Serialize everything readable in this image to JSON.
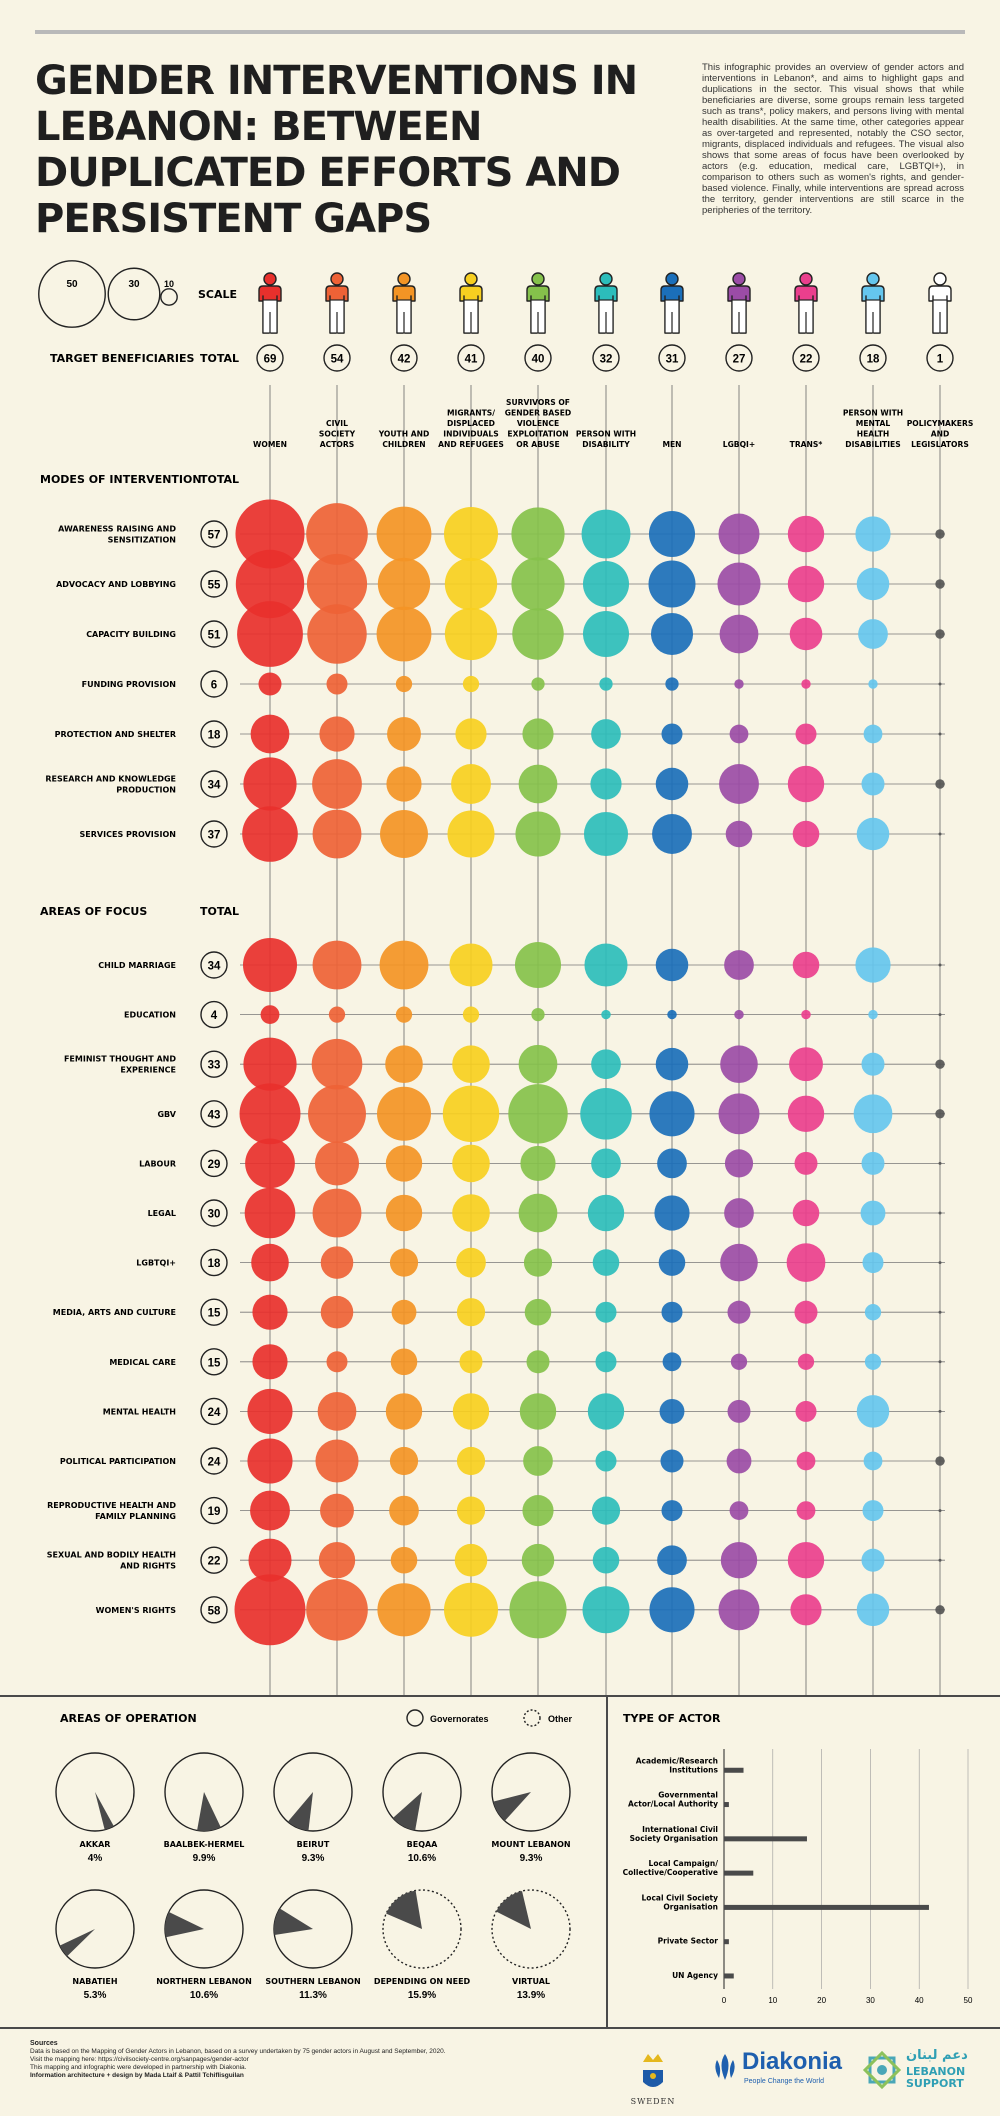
{
  "title": "GENDER INTERVENTIONS IN LEBANON: BETWEEN DUPLICATED EFFORTS AND PERSISTENT GAPS",
  "intro": "This infographic provides an overview of gender actors and interventions in Lebanon*, and aims to highlight gaps and duplications in the sector. This visual shows that while beneficiaries are diverse, some groups remain less targeted such as trans*, policy makers, and persons living with mental health disabilities. At the same time, other categories appear as over-targeted and represented, notably the CSO sector, migrants, displaced individuals and refugees. The visual also shows that some areas of focus have been overlooked by actors (e.g. education, medical care, LGBTQI+), in comparison to others such as women's rights, and gender-based violence. Finally, while interventions are spread across the territory, gender interventions are still scarce in the peripheries of the territory.",
  "labels": {
    "scale": "SCALE",
    "target_beneficiaries": "TARGET BENEFICIARIES",
    "total": "TOTAL",
    "modes_of_intervention": "MODES OF INTERVENTION",
    "areas_of_focus": "AREAS OF FOCUS",
    "areas_of_operation": "AREAS OF OPERATION",
    "governorates": "Governorates",
    "other": "Other",
    "type_of_actor": "TYPE OF ACTOR"
  },
  "scale_values": [
    "50",
    "30",
    "10"
  ],
  "colors": [
    "#e8302c",
    "#ee6236",
    "#f39425",
    "#f7cf20",
    "#85c14b",
    "#2cbdbb",
    "#1b6fba",
    "#9b4ca6",
    "#ea3f8d",
    "#65c6ee",
    "#ffffff"
  ],
  "chart_data": [
    {
      "type": "bubble-matrix",
      "columns": [
        {
          "name": "WOMEN",
          "total": 69
        },
        {
          "name": "CIVIL SOCIETY ACTORS",
          "total": 54
        },
        {
          "name": "YOUTH AND CHILDREN",
          "total": 42
        },
        {
          "name": "MIGRANTS/ DISPLACED INDIVIDUALS AND REFUGEES",
          "total": 41
        },
        {
          "name": "SURVIVORS OF GENDER BASED VIOLENCE EXPLOITATION OR ABUSE",
          "total": 40
        },
        {
          "name": "PERSON WITH DISABILITY",
          "total": 32
        },
        {
          "name": "MEN",
          "total": 31
        },
        {
          "name": "LGBQI+",
          "total": 27
        },
        {
          "name": "TRANS*",
          "total": 22
        },
        {
          "name": "PERSON WITH MENTAL HEALTH DISABILITIES",
          "total": 18
        },
        {
          "name": "POLICYMAKERS AND LEGISLATORS",
          "total": 1
        }
      ],
      "modes": [
        {
          "name": "AWARENESS RAISING AND SENSITIZATION",
          "total": 57,
          "values": [
            54,
            43,
            34,
            33,
            32,
            27,
            24,
            19,
            15,
            14,
            1
          ]
        },
        {
          "name": "ADVOCACY AND LOBBYING",
          "total": 55,
          "values": [
            53,
            41,
            31,
            31,
            32,
            24,
            25,
            21,
            15,
            12,
            1
          ]
        },
        {
          "name": "CAPACITY BUILDING",
          "total": 51,
          "values": [
            49,
            40,
            34,
            31,
            30,
            24,
            20,
            17,
            12,
            10,
            1
          ]
        },
        {
          "name": "FUNDING PROVISION",
          "total": 6,
          "values": [
            6,
            5,
            3,
            3,
            2,
            2,
            2,
            1,
            1,
            1,
            0
          ]
        },
        {
          "name": "PROTECTION AND SHELTER",
          "total": 18,
          "values": [
            17,
            14,
            13,
            11,
            11,
            10,
            5,
            4,
            5,
            4,
            0
          ]
        },
        {
          "name": "RESEARCH AND KNOWLEDGE PRODUCTION",
          "total": 34,
          "values": [
            32,
            28,
            14,
            18,
            17,
            11,
            12,
            18,
            15,
            6,
            1
          ]
        },
        {
          "name": "SERVICES PROVISION",
          "total": 37,
          "values": [
            35,
            27,
            26,
            25,
            23,
            22,
            18,
            8,
            8,
            12,
            0
          ]
        }
      ],
      "areas": [
        {
          "name": "CHILD MARRIAGE",
          "total": 34,
          "values": [
            33,
            27,
            27,
            21,
            24,
            21,
            12,
            10,
            8,
            14,
            0
          ]
        },
        {
          "name": "EDUCATION",
          "total": 4,
          "values": [
            4,
            3,
            3,
            3,
            2,
            1,
            1,
            1,
            1,
            1,
            0
          ]
        },
        {
          "name": "FEMINIST THOUGHT AND EXPERIENCE",
          "total": 33,
          "values": [
            32,
            29,
            16,
            16,
            17,
            10,
            12,
            16,
            13,
            6,
            1
          ]
        },
        {
          "name": "GBV",
          "total": 43,
          "values": [
            42,
            38,
            33,
            36,
            40,
            30,
            23,
            19,
            15,
            17,
            1
          ]
        },
        {
          "name": "LABOUR",
          "total": 29,
          "values": [
            28,
            22,
            15,
            16,
            14,
            10,
            10,
            9,
            6,
            6,
            0
          ]
        },
        {
          "name": "LEGAL",
          "total": 30,
          "values": [
            29,
            27,
            15,
            16,
            17,
            15,
            14,
            10,
            8,
            7,
            0
          ]
        },
        {
          "name": "LGBTQI+",
          "total": 18,
          "values": [
            16,
            12,
            9,
            10,
            9,
            8,
            8,
            16,
            17,
            5,
            0
          ]
        },
        {
          "name": "MEDIA, ARTS AND CULTURE",
          "total": 15,
          "values": [
            14,
            12,
            7,
            9,
            8,
            5,
            5,
            6,
            6,
            3,
            0
          ]
        },
        {
          "name": "MEDICAL CARE",
          "total": 15,
          "values": [
            14,
            5,
            8,
            6,
            6,
            5,
            4,
            3,
            3,
            3,
            0
          ]
        },
        {
          "name": "MENTAL HEALTH",
          "total": 24,
          "values": [
            23,
            17,
            15,
            15,
            15,
            15,
            7,
            6,
            5,
            12,
            0
          ]
        },
        {
          "name": "POLITICAL PARTICIPATION",
          "total": 24,
          "values": [
            23,
            21,
            9,
            9,
            10,
            5,
            6,
            7,
            4,
            4,
            1
          ]
        },
        {
          "name": "REPRODUCTIVE HEALTH AND FAMILY PLANNING",
          "total": 19,
          "values": [
            18,
            13,
            10,
            9,
            11,
            9,
            5,
            4,
            4,
            5,
            0
          ]
        },
        {
          "name": "SEXUAL AND BODILY HEALTH AND RIGHTS",
          "total": 22,
          "values": [
            21,
            15,
            8,
            12,
            12,
            8,
            10,
            15,
            15,
            6,
            0
          ]
        },
        {
          "name": "WOMEN'S RIGHTS",
          "total": 58,
          "values": [
            57,
            43,
            32,
            33,
            37,
            25,
            23,
            19,
            11,
            12,
            1
          ]
        }
      ]
    },
    {
      "type": "pie",
      "title": "AREAS OF OPERATION",
      "slices": [
        {
          "name": "AKKAR",
          "value": 4,
          "label": "4%",
          "kind": "governorate"
        },
        {
          "name": "BAALBEK-HERMEL",
          "value": 9.9,
          "label": "9.9%",
          "kind": "governorate"
        },
        {
          "name": "BEIRUT",
          "value": 9.3,
          "label": "9.3%",
          "kind": "governorate"
        },
        {
          "name": "BEQAA",
          "value": 10.6,
          "label": "10.6%",
          "kind": "governorate"
        },
        {
          "name": "MOUNT LEBANON",
          "value": 9.3,
          "label": "9.3%",
          "kind": "governorate"
        },
        {
          "name": "NABATIEH",
          "value": 5.3,
          "label": "5.3%",
          "kind": "governorate"
        },
        {
          "name": "NORTHERN LEBANON",
          "value": 10.6,
          "label": "10.6%",
          "kind": "governorate"
        },
        {
          "name": "SOUTHERN LEBANON",
          "value": 11.3,
          "label": "11.3%",
          "kind": "governorate"
        },
        {
          "name": "DEPENDING ON NEED",
          "value": 15.9,
          "label": "15.9%",
          "kind": "other"
        },
        {
          "name": "VIRTUAL",
          "value": 13.9,
          "label": "13.9%",
          "kind": "other"
        }
      ]
    },
    {
      "type": "bar",
      "title": "TYPE OF ACTOR",
      "orientation": "horizontal",
      "categories": [
        "Academic/Research Institutions",
        "Governmental Actor/Local Authority",
        "International Civil Society Organisation",
        "Local Campaign/ Collective/Cooperative",
        "Local Civil Society Organisation",
        "Private Sector",
        "UN Agency"
      ],
      "values": [
        4,
        1,
        17,
        6,
        42,
        1,
        2
      ],
      "xticks": [
        "0",
        "10",
        "20",
        "30",
        "40",
        "50"
      ],
      "xlim": [
        0,
        50
      ],
      "grid": true
    }
  ],
  "sources": {
    "heading": "Sources",
    "line1": "Data is based on the Mapping of Gender Actors in Lebanon, based on a survey undertaken by 75 gender actors in August and September, 2020.",
    "line2": "Visit the mapping here: https://civilsociety-centre.org/sanpages/gender-actor",
    "line3": "This mapping and infographic were developed in partnership with Diakonia.",
    "credit": "Information architecture + design by Mada Ltaif & Pattil Tchiflisguilan"
  },
  "logos": {
    "sweden": "SWEDEN",
    "diakonia": "Diakonia",
    "diakonia_tagline": "People Change the World",
    "lebanon_support": "LEBANON SUPPORT",
    "lebanon_support_arabic": "دعم لبنان"
  }
}
